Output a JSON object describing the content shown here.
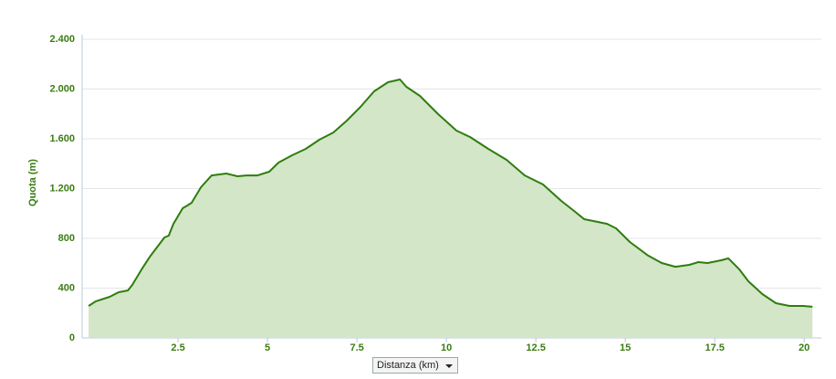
{
  "chart_data": {
    "type": "area",
    "y_label": "Quota (m)",
    "x_label": "Distanza (km)",
    "color": "#2e7d0d",
    "fill": "#d3e6c8",
    "x": [
      0,
      0.2,
      0.59,
      0.84,
      1.1,
      1.22,
      1.48,
      1.73,
      2.12,
      2.24,
      2.37,
      2.63,
      2.76,
      2.88,
      3.14,
      3.44,
      3.65,
      3.85,
      4.16,
      4.41,
      4.72,
      5.05,
      5.31,
      5.69,
      6.07,
      6.45,
      6.84,
      7.22,
      7.6,
      7.98,
      8.37,
      8.7,
      8.88,
      9.26,
      9.77,
      10.28,
      10.66,
      11.17,
      11.68,
      12.19,
      12.7,
      13.21,
      13.6,
      13.85,
      14.23,
      14.49,
      14.74,
      15.13,
      15.64,
      16.02,
      16.4,
      16.79,
      17.04,
      17.3,
      17.68,
      17.88,
      18.19,
      18.44,
      18.83,
      19.21,
      19.59,
      19.97,
      20.23
    ],
    "values": [
      257,
      294,
      330,
      367,
      382,
      426,
      550,
      660,
      807,
      822,
      917,
      1042,
      1064,
      1086,
      1211,
      1306,
      1314,
      1321,
      1299,
      1306,
      1306,
      1336,
      1409,
      1468,
      1519,
      1593,
      1651,
      1747,
      1857,
      1982,
      2055,
      2077,
      2018,
      1945,
      1798,
      1666,
      1615,
      1519,
      1431,
      1306,
      1233,
      1101,
      1013,
      954,
      932,
      917,
      881,
      771,
      661,
      602,
      572,
      587,
      609,
      602,
      624,
      639,
      550,
      455,
      352,
      279,
      257,
      257,
      250
    ],
    "xlim": [
      -0.18,
      20.48
    ],
    "ylim": [
      0,
      2400
    ],
    "xticks": [
      2.5,
      5,
      7.5,
      10,
      12.5,
      15,
      17.5,
      20
    ],
    "yticks": [
      0,
      400,
      800,
      {
        "value": 1200,
        "label": "1.200"
      },
      {
        "value": 1600,
        "label": "1.600"
      },
      {
        "value": 2000,
        "label": "2.000"
      },
      {
        "value": 2400,
        "label": "2.400"
      }
    ],
    "grid": true
  }
}
